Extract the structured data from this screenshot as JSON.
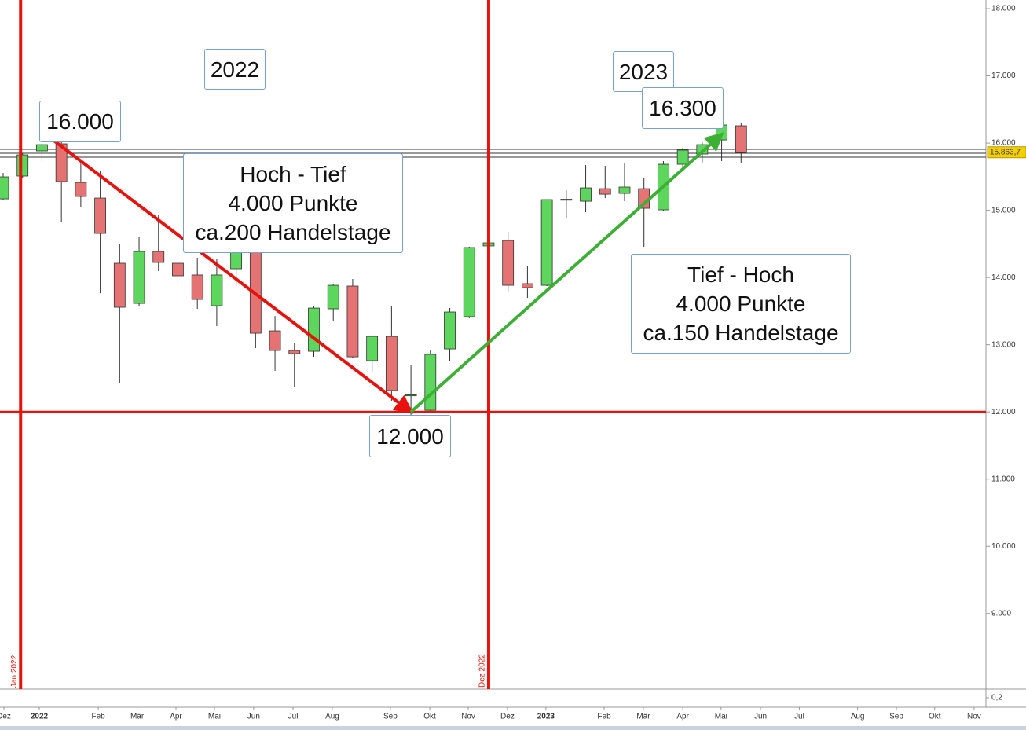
{
  "chart_data": {
    "type": "candlestick",
    "x": [
      0,
      1,
      2,
      3,
      4,
      5,
      6,
      7,
      8,
      9,
      10,
      11,
      12,
      13,
      14,
      15,
      16,
      17,
      18,
      19,
      20,
      21,
      22,
      23,
      24,
      25,
      26,
      27,
      28,
      29,
      30,
      31,
      32,
      33,
      34,
      35,
      36,
      37,
      38
    ],
    "open": [
      15170,
      15510,
      15884,
      15989,
      15416,
      15182,
      14212,
      13615,
      14387,
      14212,
      14037,
      13580,
      14130,
      14516,
      13206,
      12914,
      12902,
      13534,
      13873,
      12762,
      13124,
      12240,
      12025,
      12937,
      13417,
      14470,
      14551,
      13908,
      13884,
      15150,
      15135,
      15322,
      15252,
      15322,
      15007,
      15685,
      15837,
      16047,
      16258
    ],
    "high": [
      15556,
      15849,
      16293,
      16083,
      15732,
      15580,
      14504,
      14598,
      14925,
      14411,
      14294,
      14271,
      14621,
      14633,
      13428,
      13019,
      13568,
      13908,
      13978,
      13136,
      13569,
      12704,
      12926,
      13545,
      14457,
      14539,
      14680,
      14177,
      15159,
      15299,
      15673,
      15662,
      15708,
      15475,
      15732,
      15931,
      16012,
      16340,
      16305
    ],
    "low": [
      15147,
      15475,
      15732,
      14832,
      15042,
      13767,
      12423,
      13568,
      14095,
      13884,
      13534,
      13276,
      13873,
      12949,
      12610,
      12376,
      12820,
      13347,
      12797,
      12587,
      12166,
      11815,
      11990,
      12762,
      13393,
      14457,
      13791,
      13697,
      13873,
      14890,
      14972,
      15182,
      15135,
      14457,
      14995,
      15615,
      15708,
      15732,
      15708
    ],
    "close": [
      15498,
      15825,
      15977,
      15428,
      15206,
      14656,
      13557,
      14387,
      14224,
      14025,
      13674,
      14037,
      14492,
      13171,
      12914,
      12867,
      13545,
      13884,
      12820,
      13124,
      12318,
      12255,
      12856,
      13487,
      14446,
      14516,
      13884,
      13849,
      15159,
      15165,
      15334,
      15240,
      15346,
      15030,
      15685,
      15896,
      15977,
      16270,
      15860
    ],
    "up_color": "#5cd65c",
    "down_color": "#e57373",
    "xlim": [
      -0.162,
      50.61
    ],
    "xticks": [
      {
        "value": 0.04,
        "label": "Dez"
      },
      {
        "value": 1.86,
        "label": "2022"
      },
      {
        "value": 4.9,
        "label": "Feb"
      },
      {
        "value": 6.9,
        "label": "Mär"
      },
      {
        "value": 8.9,
        "label": "Apr"
      },
      {
        "value": 10.88,
        "label": "Mai"
      },
      {
        "value": 12.9,
        "label": "Jun"
      },
      {
        "value": 14.93,
        "label": "Jul"
      },
      {
        "value": 16.95,
        "label": "Aug"
      },
      {
        "value": 19.94,
        "label": "Sep"
      },
      {
        "value": 21.97,
        "label": "Okt"
      },
      {
        "value": 23.95,
        "label": "Nov"
      },
      {
        "value": 25.97,
        "label": "Dez"
      },
      {
        "value": 27.95,
        "label": "2023"
      },
      {
        "value": 30.95,
        "label": "Feb"
      },
      {
        "value": 32.97,
        "label": "Mär"
      },
      {
        "value": 35.0,
        "label": "Apr"
      },
      {
        "value": 36.97,
        "label": "Mai"
      },
      {
        "value": 39.0,
        "label": "Jun"
      },
      {
        "value": 41.0,
        "label": "Jul"
      },
      {
        "value": 44.0,
        "label": "Aug"
      },
      {
        "value": 46.0,
        "label": "Sep"
      },
      {
        "value": 47.97,
        "label": "Okt"
      },
      {
        "value": 50.0,
        "label": "Nov"
      }
    ],
    "ylim": [
      7875,
      18129
    ],
    "yticks": [
      {
        "value": 18000,
        "label": "18.000"
      },
      {
        "value": 17000,
        "label": "17.000"
      },
      {
        "value": 16000,
        "label": "16.000"
      },
      {
        "value": 15000,
        "label": "15.000"
      },
      {
        "value": 14000,
        "label": "14.000"
      },
      {
        "value": 13000,
        "label": "13.000"
      },
      {
        "value": 12000,
        "label": "12.000"
      },
      {
        "value": 11000,
        "label": "11.000"
      },
      {
        "value": 10000,
        "label": "10.000"
      },
      {
        "value": 9000,
        "label": "9.000"
      }
    ],
    "last_price": {
      "value": 15863.7,
      "label": "15.863,7"
    },
    "hlines": [
      15907,
      15849,
      15790
    ],
    "red_hline": 12000,
    "vlines": [
      {
        "value": 0.9,
        "label": "Jan 2022"
      },
      {
        "value": 25,
        "label": "Dez 2022"
      }
    ],
    "arrows": [
      {
        "from": [
          2.1,
          16150
        ],
        "to": [
          21,
          12000
        ],
        "color": "#e8120c"
      },
      {
        "from": [
          21,
          12000
        ],
        "to": [
          37,
          16130
        ],
        "color": "#3cb034"
      }
    ],
    "lower_panel_label": "0,2",
    "annotations": [
      {
        "lines": [
          "2022"
        ]
      },
      {
        "lines": [
          "16.000"
        ]
      },
      {
        "lines": [
          "Hoch - Tief",
          "4.000 Punkte",
          "ca.200 Handelstage"
        ]
      },
      {
        "lines": [
          "2023"
        ]
      },
      {
        "lines": [
          "16.300"
        ]
      },
      {
        "lines": [
          "12.000"
        ]
      },
      {
        "lines": [
          "Tief - Hoch",
          "4.000 Punkte",
          "ca.150 Handelstage"
        ]
      }
    ]
  }
}
